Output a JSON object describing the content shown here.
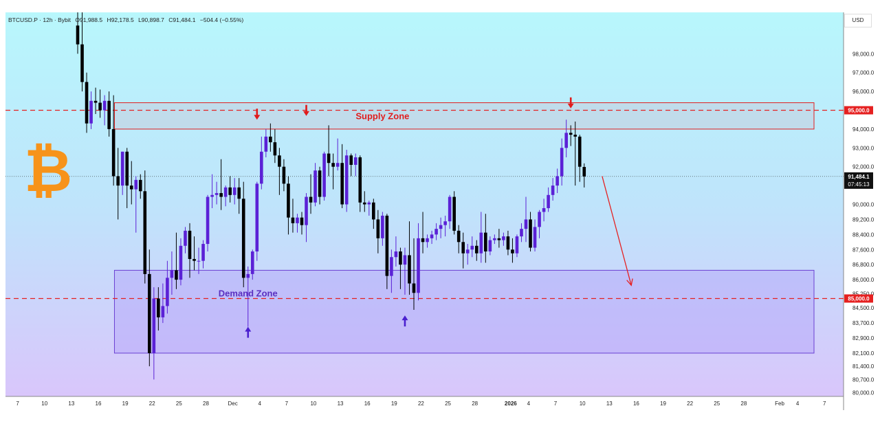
{
  "header": {
    "symbol": "BTCUSD.P · 12h · Bybit",
    "open": "O91,988.5",
    "high": "H92,178.5",
    "low": "L90,898.7",
    "close": "C91,484.1",
    "change": "−504.4 (−0.55%)"
  },
  "currency_button": "USD",
  "logo_icon": "bitcoin-logo-icon",
  "colors": {
    "bull": "#5b21d6",
    "bear": "#000000",
    "supply": "#e11d1d",
    "demand": "#6a3fd3",
    "dashed": "#e52020",
    "bitcoin": "#f7931a"
  },
  "chart_data": {
    "type": "candlestick",
    "title": "",
    "xlabel": "",
    "ylabel": "",
    "ylim": [
      79800,
      100200
    ],
    "y_ticks": [
      98000,
      97000,
      96000,
      94000,
      93000,
      92000,
      90000,
      89200,
      88400,
      87600,
      86800,
      86000,
      85250,
      84500,
      83700,
      82900,
      82100,
      81400,
      80700,
      80000
    ],
    "x_labels": [
      {
        "label": "7",
        "i": -13.4
      },
      {
        "label": "10",
        "i": -7.4
      },
      {
        "label": "13",
        "i": -1.4
      },
      {
        "label": "16",
        "i": 4.6
      },
      {
        "label": "19",
        "i": 10.6
      },
      {
        "label": "22",
        "i": 16.6
      },
      {
        "label": "25",
        "i": 22.6
      },
      {
        "label": "28",
        "i": 28.6
      },
      {
        "label": "Dec",
        "i": 34.6
      },
      {
        "label": "4",
        "i": 40.6
      },
      {
        "label": "7",
        "i": 46.6
      },
      {
        "label": "10",
        "i": 52.6
      },
      {
        "label": "13",
        "i": 58.6
      },
      {
        "label": "16",
        "i": 64.6
      },
      {
        "label": "19",
        "i": 70.6
      },
      {
        "label": "22",
        "i": 76.6
      },
      {
        "label": "25",
        "i": 82.6
      },
      {
        "label": "28",
        "i": 88.6
      },
      {
        "label": "2026",
        "i": 96.6
      },
      {
        "label": "4",
        "i": 100.6
      },
      {
        "label": "7",
        "i": 106.6
      },
      {
        "label": "10",
        "i": 112.6
      },
      {
        "label": "13",
        "i": 118.6
      },
      {
        "label": "16",
        "i": 124.6
      },
      {
        "label": "19",
        "i": 130.6
      },
      {
        "label": "22",
        "i": 136.6
      },
      {
        "label": "25",
        "i": 142.6
      },
      {
        "label": "28",
        "i": 148.6
      },
      {
        "label": "Feb",
        "i": 156.6
      },
      {
        "label": "4",
        "i": 160.6
      },
      {
        "label": "7",
        "i": 166.6
      }
    ],
    "candles": [
      {
        "o": 99500,
        "h": 100500,
        "c": 98500,
        "l": 98000
      },
      {
        "o": 98500,
        "h": 100200,
        "c": 96500,
        "l": 96000
      },
      {
        "o": 96500,
        "h": 97000,
        "c": 94300,
        "l": 93800
      },
      {
        "o": 94300,
        "h": 96000,
        "c": 95500,
        "l": 94000
      },
      {
        "o": 95500,
        "h": 96200,
        "c": 95400,
        "l": 94800
      },
      {
        "o": 95400,
        "h": 96100,
        "c": 95000,
        "l": 94600
      },
      {
        "o": 95000,
        "h": 95800,
        "c": 95500,
        "l": 94200
      },
      {
        "o": 95500,
        "h": 96000,
        "c": 94000,
        "l": 93600
      },
      {
        "o": 94000,
        "h": 95800,
        "c": 91500,
        "l": 91000
      },
      {
        "o": 91500,
        "h": 93000,
        "c": 91000,
        "l": 89200
      },
      {
        "o": 91000,
        "h": 92800,
        "c": 92800,
        "l": 90500
      },
      {
        "o": 92800,
        "h": 93000,
        "c": 91000,
        "l": 89800
      },
      {
        "o": 91000,
        "h": 92300,
        "c": 90800,
        "l": 90000
      },
      {
        "o": 90800,
        "h": 91500,
        "c": 91300,
        "l": 88500
      },
      {
        "o": 91300,
        "h": 91600,
        "c": 90700,
        "l": 90300
      },
      {
        "o": 90700,
        "h": 91800,
        "c": 86300,
        "l": 85800
      },
      {
        "o": 86300,
        "h": 87600,
        "c": 82100,
        "l": 81400
      },
      {
        "o": 82100,
        "h": 85600,
        "c": 85000,
        "l": 80700
      },
      {
        "o": 85000,
        "h": 85600,
        "c": 84000,
        "l": 83300
      },
      {
        "o": 84000,
        "h": 85800,
        "c": 84600,
        "l": 83700
      },
      {
        "o": 84600,
        "h": 87000,
        "c": 86100,
        "l": 84200
      },
      {
        "o": 86100,
        "h": 87500,
        "c": 86500,
        "l": 85200
      },
      {
        "o": 86500,
        "h": 88500,
        "c": 86000,
        "l": 85500
      },
      {
        "o": 86000,
        "h": 88200,
        "c": 87800,
        "l": 85700
      },
      {
        "o": 87800,
        "h": 88800,
        "c": 88600,
        "l": 87400
      },
      {
        "o": 88600,
        "h": 89000,
        "c": 87100,
        "l": 86100
      },
      {
        "o": 87100,
        "h": 88300,
        "c": 87000,
        "l": 86500
      },
      {
        "o": 87000,
        "h": 87700,
        "c": 87000,
        "l": 86300
      },
      {
        "o": 87000,
        "h": 88100,
        "c": 87900,
        "l": 86600
      },
      {
        "o": 87900,
        "h": 90500,
        "c": 90400,
        "l": 87500
      },
      {
        "o": 90400,
        "h": 91600,
        "c": 90500,
        "l": 89800
      },
      {
        "o": 90500,
        "h": 91200,
        "c": 90600,
        "l": 90000
      },
      {
        "o": 90600,
        "h": 92400,
        "c": 90400,
        "l": 89700
      },
      {
        "o": 90400,
        "h": 91000,
        "c": 90900,
        "l": 89900
      },
      {
        "o": 90900,
        "h": 91500,
        "c": 90500,
        "l": 90100
      },
      {
        "o": 90500,
        "h": 91400,
        "c": 90900,
        "l": 90000
      },
      {
        "o": 90900,
        "h": 91400,
        "c": 90300,
        "l": 89500
      },
      {
        "o": 90300,
        "h": 91200,
        "c": 86100,
        "l": 85600
      },
      {
        "o": 86100,
        "h": 86700,
        "c": 86300,
        "l": 83500
      },
      {
        "o": 86300,
        "h": 87600,
        "c": 87500,
        "l": 86000
      },
      {
        "o": 87500,
        "h": 91200,
        "c": 91100,
        "l": 87000
      },
      {
        "o": 91100,
        "h": 93600,
        "c": 92800,
        "l": 90800
      },
      {
        "o": 92800,
        "h": 94000,
        "c": 93600,
        "l": 92500
      },
      {
        "o": 93600,
        "h": 94300,
        "c": 93300,
        "l": 92800
      },
      {
        "o": 93300,
        "h": 94000,
        "c": 92600,
        "l": 92200
      },
      {
        "o": 92600,
        "h": 93000,
        "c": 92000,
        "l": 90500
      },
      {
        "o": 92000,
        "h": 92400,
        "c": 91100,
        "l": 90700
      },
      {
        "o": 91100,
        "h": 91500,
        "c": 89300,
        "l": 88400
      },
      {
        "o": 89300,
        "h": 90300,
        "c": 89000,
        "l": 88500
      },
      {
        "o": 89000,
        "h": 89500,
        "c": 89300,
        "l": 88500
      },
      {
        "o": 89300,
        "h": 89600,
        "c": 88900,
        "l": 88400
      },
      {
        "o": 88900,
        "h": 90600,
        "c": 90400,
        "l": 88000
      },
      {
        "o": 90400,
        "h": 91600,
        "c": 90100,
        "l": 89500
      },
      {
        "o": 90100,
        "h": 92200,
        "c": 91800,
        "l": 89900
      },
      {
        "o": 91800,
        "h": 92000,
        "c": 90400,
        "l": 90000
      },
      {
        "o": 90400,
        "h": 92800,
        "c": 92700,
        "l": 90200
      },
      {
        "o": 92700,
        "h": 94200,
        "c": 92200,
        "l": 91500
      },
      {
        "o": 92200,
        "h": 92700,
        "c": 92000,
        "l": 90800
      },
      {
        "o": 92000,
        "h": 93500,
        "c": 92200,
        "l": 91800
      },
      {
        "o": 92200,
        "h": 93200,
        "c": 90000,
        "l": 89800
      },
      {
        "o": 90000,
        "h": 92900,
        "c": 92600,
        "l": 89600
      },
      {
        "o": 92600,
        "h": 92700,
        "c": 92100,
        "l": 91500
      },
      {
        "o": 92100,
        "h": 92700,
        "c": 92500,
        "l": 91500
      },
      {
        "o": 92500,
        "h": 92600,
        "c": 90100,
        "l": 89600
      },
      {
        "o": 90100,
        "h": 90700,
        "c": 90000,
        "l": 89600
      },
      {
        "o": 90000,
        "h": 90200,
        "c": 90100,
        "l": 89400
      },
      {
        "o": 90100,
        "h": 90300,
        "c": 89200,
        "l": 88700
      },
      {
        "o": 89200,
        "h": 89700,
        "c": 88200,
        "l": 87400
      },
      {
        "o": 88200,
        "h": 89600,
        "c": 89400,
        "l": 87800
      },
      {
        "o": 89400,
        "h": 89500,
        "c": 86200,
        "l": 85500
      },
      {
        "o": 86200,
        "h": 87600,
        "c": 87200,
        "l": 85300
      },
      {
        "o": 87200,
        "h": 88300,
        "c": 87500,
        "l": 86700
      },
      {
        "o": 87500,
        "h": 87700,
        "c": 86800,
        "l": 85500
      },
      {
        "o": 86800,
        "h": 87700,
        "c": 87300,
        "l": 85200
      },
      {
        "o": 87300,
        "h": 89100,
        "c": 85800,
        "l": 85200
      },
      {
        "o": 85800,
        "h": 88200,
        "c": 85300,
        "l": 84400
      },
      {
        "o": 85300,
        "h": 89000,
        "c": 88200,
        "l": 84900
      },
      {
        "o": 88200,
        "h": 89600,
        "c": 88000,
        "l": 87400
      },
      {
        "o": 88000,
        "h": 88400,
        "c": 88200,
        "l": 87700
      },
      {
        "o": 88200,
        "h": 88600,
        "c": 88400,
        "l": 87900
      },
      {
        "o": 88400,
        "h": 89000,
        "c": 88700,
        "l": 88100
      },
      {
        "o": 88700,
        "h": 89300,
        "c": 88900,
        "l": 88200
      },
      {
        "o": 88900,
        "h": 89400,
        "c": 89100,
        "l": 88300
      },
      {
        "o": 89100,
        "h": 90500,
        "c": 90400,
        "l": 88700
      },
      {
        "o": 90400,
        "h": 90700,
        "c": 88600,
        "l": 88400
      },
      {
        "o": 88600,
        "h": 88900,
        "c": 88000,
        "l": 87400
      },
      {
        "o": 88000,
        "h": 88500,
        "c": 87400,
        "l": 86600
      },
      {
        "o": 87400,
        "h": 87900,
        "c": 87600,
        "l": 86800
      },
      {
        "o": 87600,
        "h": 88300,
        "c": 87800,
        "l": 87200
      },
      {
        "o": 87800,
        "h": 88100,
        "c": 87400,
        "l": 87000
      },
      {
        "o": 87400,
        "h": 89600,
        "c": 88500,
        "l": 86900
      },
      {
        "o": 88500,
        "h": 89500,
        "c": 87500,
        "l": 86900
      },
      {
        "o": 87500,
        "h": 88300,
        "c": 88100,
        "l": 87300
      },
      {
        "o": 88100,
        "h": 88400,
        "c": 88200,
        "l": 87900
      },
      {
        "o": 88200,
        "h": 88700,
        "c": 88100,
        "l": 87700
      },
      {
        "o": 88100,
        "h": 88500,
        "c": 88300,
        "l": 87800
      },
      {
        "o": 88300,
        "h": 88600,
        "c": 87600,
        "l": 87300
      },
      {
        "o": 87600,
        "h": 88200,
        "c": 87400,
        "l": 86900
      },
      {
        "o": 87400,
        "h": 88400,
        "c": 88300,
        "l": 87200
      },
      {
        "o": 88300,
        "h": 89000,
        "c": 88700,
        "l": 88000
      },
      {
        "o": 88700,
        "h": 90400,
        "c": 89200,
        "l": 88000
      },
      {
        "o": 89200,
        "h": 89600,
        "c": 87700,
        "l": 87500
      },
      {
        "o": 87700,
        "h": 89200,
        "c": 88800,
        "l": 87500
      },
      {
        "o": 88800,
        "h": 89700,
        "c": 89600,
        "l": 88200
      },
      {
        "o": 89600,
        "h": 90300,
        "c": 89800,
        "l": 89100
      },
      {
        "o": 89800,
        "h": 90900,
        "c": 90500,
        "l": 89600
      },
      {
        "o": 90500,
        "h": 91400,
        "c": 91000,
        "l": 90200
      },
      {
        "o": 91000,
        "h": 91900,
        "c": 91500,
        "l": 90600
      },
      {
        "o": 91500,
        "h": 93500,
        "c": 93000,
        "l": 91000
      },
      {
        "o": 93000,
        "h": 94500,
        "c": 93800,
        "l": 92500
      },
      {
        "o": 93800,
        "h": 94200,
        "c": 93700,
        "l": 93100
      },
      {
        "o": 93700,
        "h": 94400,
        "c": 93600,
        "l": 91000
      },
      {
        "o": 93600,
        "h": 93700,
        "c": 92000,
        "l": 91200
      },
      {
        "o": 91988.5,
        "h": 92178.5,
        "c": 91484.1,
        "l": 90898.7
      }
    ],
    "zones": [
      {
        "name": "Supply Zone",
        "ymin": 94000,
        "ymax": 95400
      },
      {
        "name": "Demand Zone",
        "ymin": 82100,
        "ymax": 86500
      }
    ],
    "levels": [
      95000,
      85000
    ],
    "level_labels": [
      "95,000.0",
      "85,000.0"
    ],
    "current_price": "91,484.1",
    "countdown": "07:45:13",
    "down_arrows": [
      {
        "i": 40,
        "y": 94500
      },
      {
        "i": 51,
        "y": 94700
      },
      {
        "i": 110,
        "y": 95100
      }
    ],
    "up_arrows": [
      {
        "i": 38,
        "y": 83500
      },
      {
        "i": 73,
        "y": 84100
      }
    ],
    "projection": {
      "from": {
        "i": 117,
        "y": 91500
      },
      "to": {
        "i": 123.5,
        "y": 85700
      }
    }
  }
}
